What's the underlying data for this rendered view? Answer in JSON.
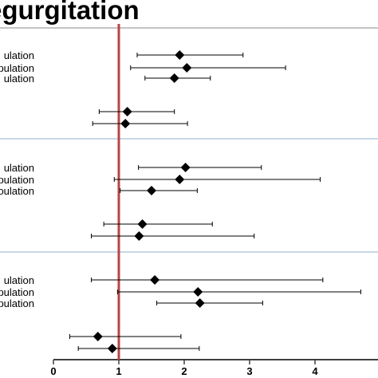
{
  "chart_data": {
    "type": "scatter",
    "title": "egurgitation",
    "xlim": [
      0,
      4.7
    ],
    "ticks": [
      "0",
      "1",
      "2",
      "3",
      "4"
    ],
    "reference_line_x": 1,
    "colors": {
      "reference": "#b84444",
      "separator": "#8fb0cf",
      "marker": "#000000",
      "axis": "#404040"
    },
    "groups": [
      {
        "rows": [
          {
            "label": "ulation",
            "value": 1.93,
            "low": 1.28,
            "high": 2.9
          },
          {
            "label": "pulation",
            "value": 2.04,
            "low": 1.18,
            "high": 3.55
          },
          {
            "label": "ulation",
            "value": 1.85,
            "low": 1.4,
            "high": 2.4
          },
          {
            "label": "",
            "value": 1.13,
            "low": 0.7,
            "high": 1.85
          },
          {
            "label": "",
            "value": 1.1,
            "low": 0.6,
            "high": 2.05
          }
        ]
      },
      {
        "rows": [
          {
            "label": "ulation",
            "value": 2.02,
            "low": 1.3,
            "high": 3.18
          },
          {
            "label": "opulation",
            "value": 1.93,
            "low": 0.93,
            "high": 4.08
          },
          {
            "label": "oulation",
            "value": 1.5,
            "low": 1.02,
            "high": 2.2
          },
          {
            "label": "",
            "value": 1.36,
            "low": 0.77,
            "high": 2.43
          },
          {
            "label": "",
            "value": 1.31,
            "low": 0.58,
            "high": 3.07
          }
        ]
      },
      {
        "rows": [
          {
            "label": "ulation",
            "value": 1.55,
            "low": 0.58,
            "high": 4.12
          },
          {
            "label": "pulation",
            "value": 2.21,
            "low": 0.98,
            "high": 4.7
          },
          {
            "label": "pulation",
            "value": 2.24,
            "low": 1.58,
            "high": 3.2
          },
          {
            "label": "",
            "value": 0.68,
            "low": 0.25,
            "high": 1.95
          },
          {
            "label": "",
            "value": 0.9,
            "low": 0.38,
            "high": 2.23
          }
        ]
      }
    ]
  }
}
